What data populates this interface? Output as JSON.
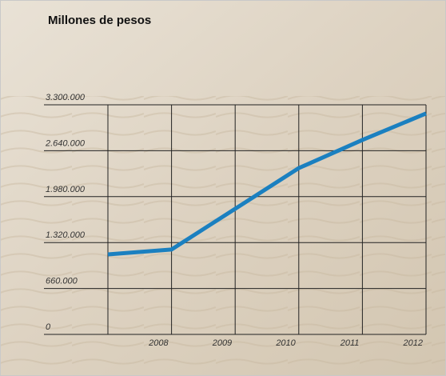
{
  "chart_data": {
    "type": "line",
    "title": "Millones de pesos",
    "categories": [
      null,
      "2008",
      "2009",
      "2010",
      "2011",
      "2012"
    ],
    "values": [
      1150000,
      1220000,
      1805000,
      2390000,
      2795000,
      3175000
    ],
    "color": "#1b80c0",
    "ylim": [
      0,
      3300000
    ],
    "yticks": [
      0,
      {
        "value": 660000,
        "label": "660.000"
      },
      {
        "value": 1320000,
        "label": "1.320.000"
      },
      {
        "value": 1980000,
        "label": "1.980.000"
      },
      {
        "value": 2640000,
        "label": "2.640.000"
      },
      {
        "value": 3300000,
        "label": "3.300.000"
      }
    ],
    "grid": true
  }
}
